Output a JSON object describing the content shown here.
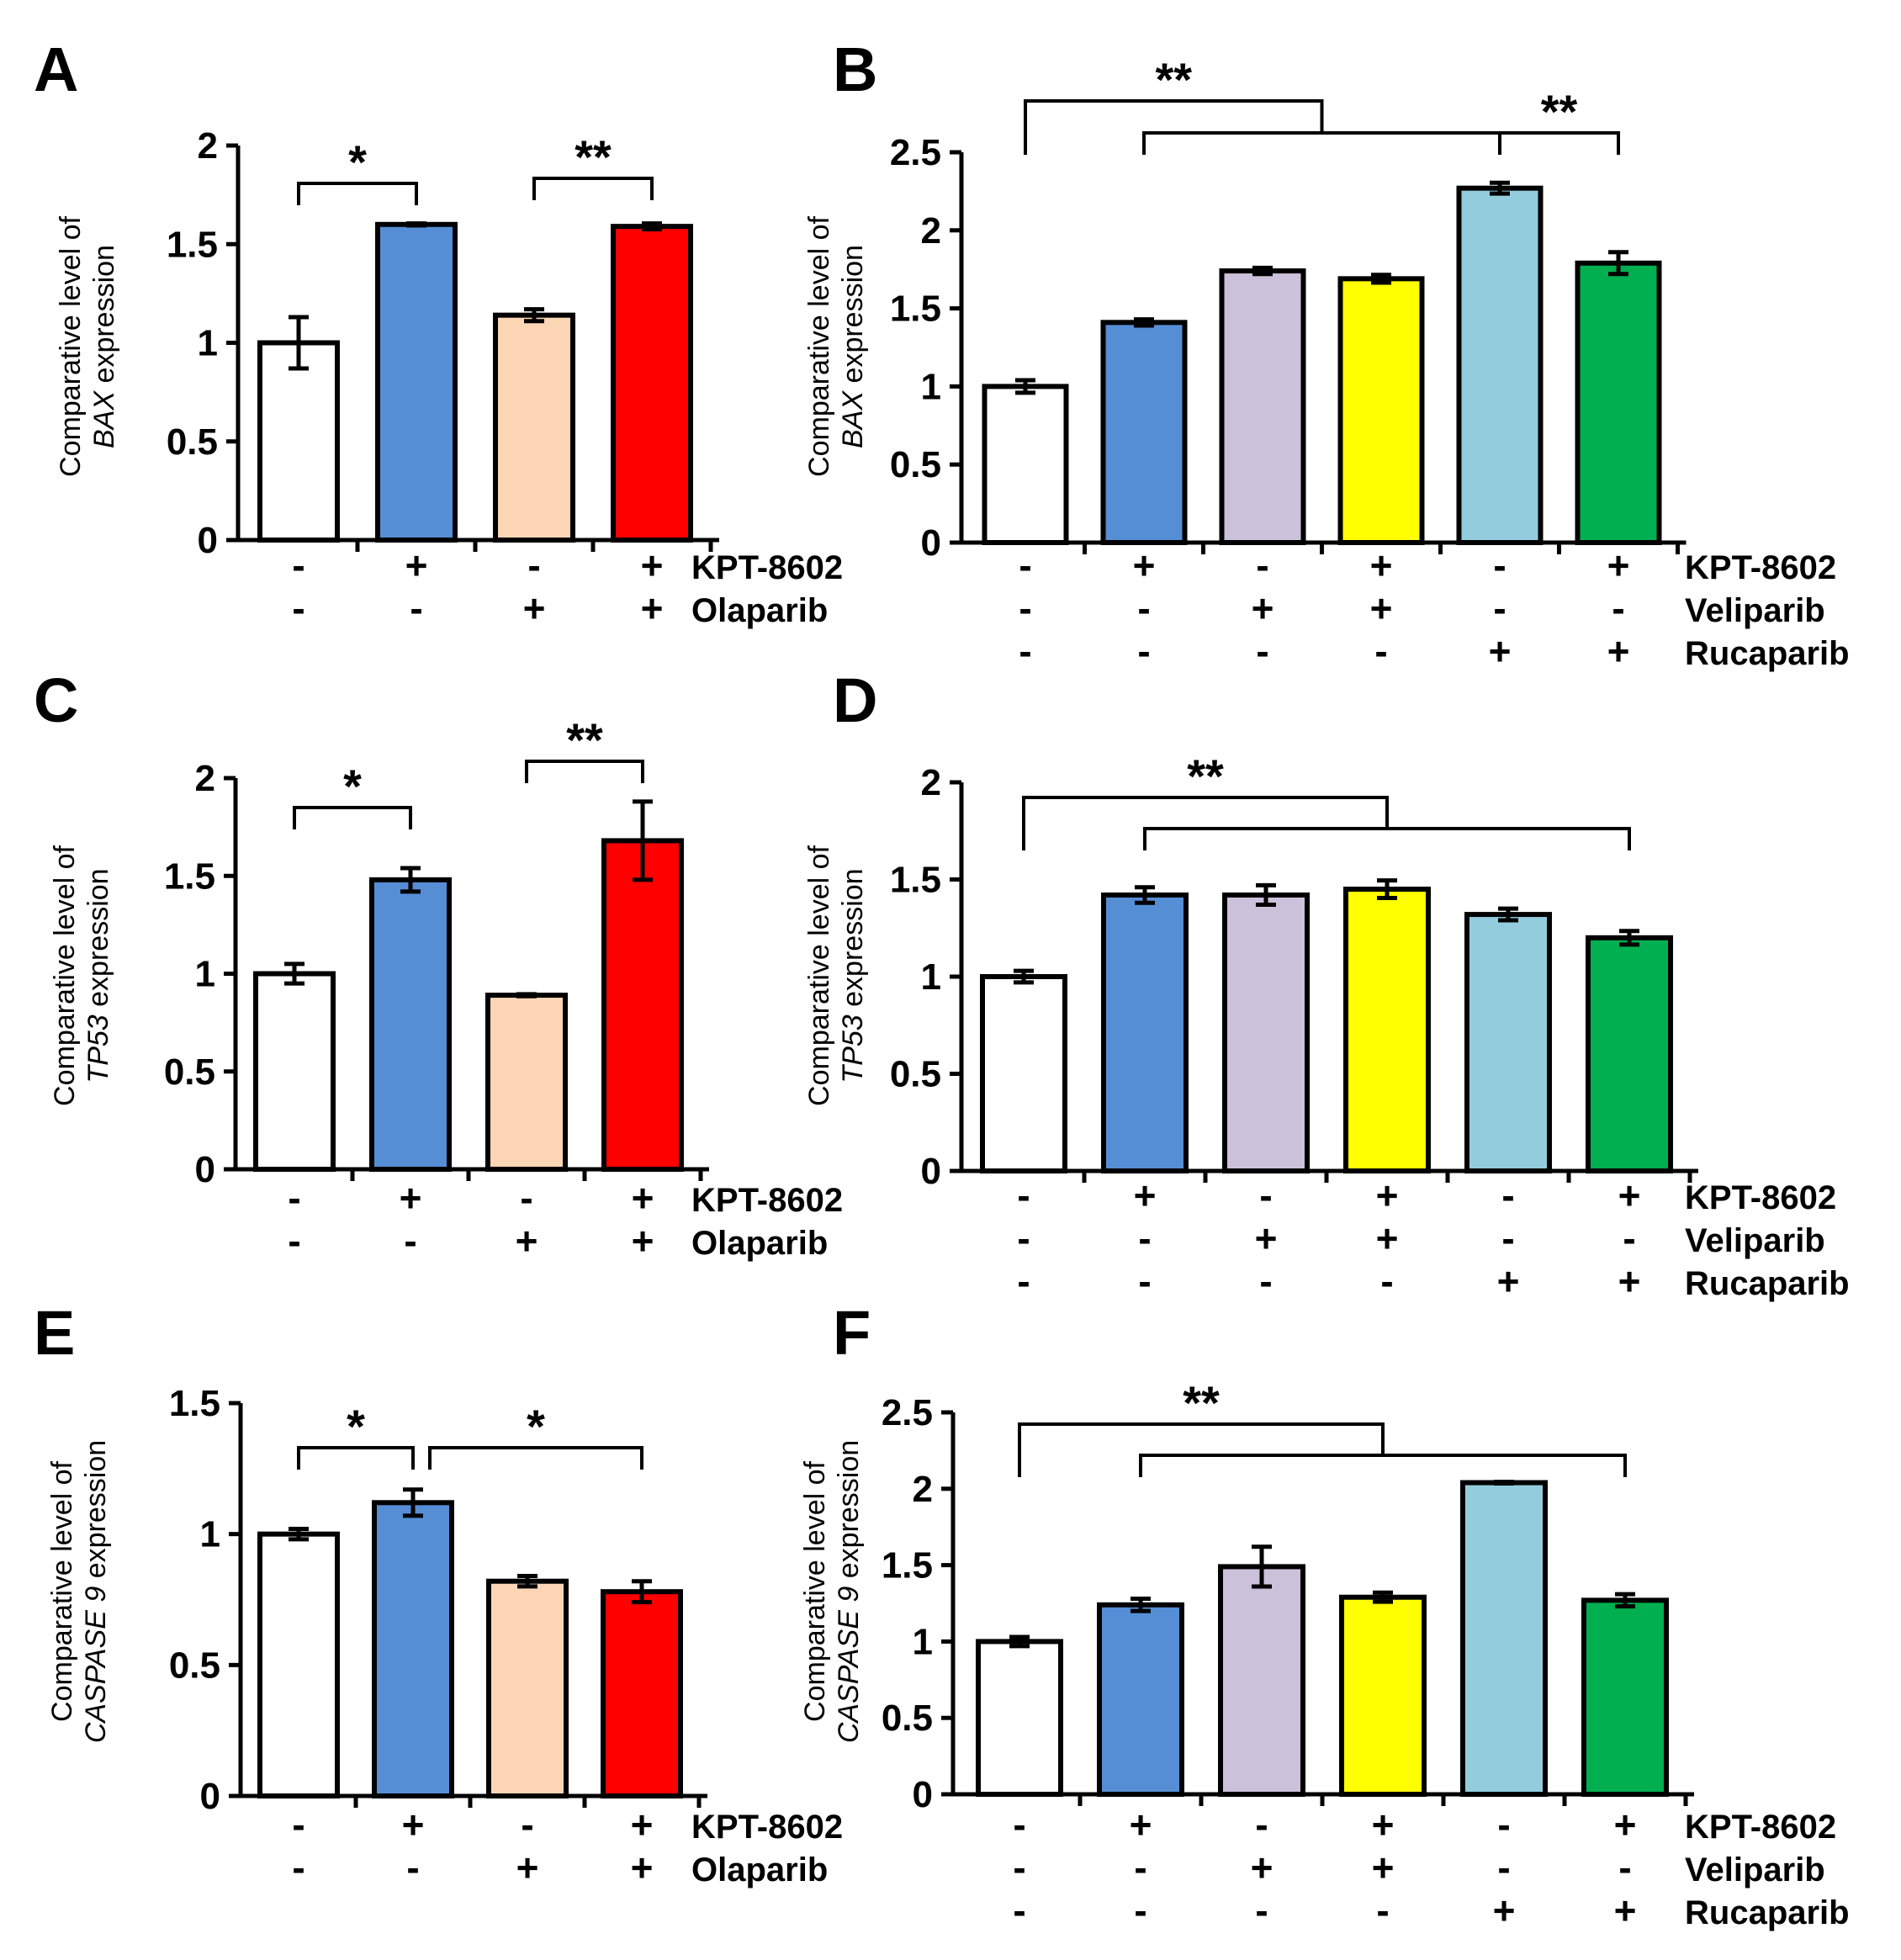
{
  "colors": {
    "white": "#ffffff",
    "blue": "#558ed5",
    "peach": "#fcd5b5",
    "red": "#ff0000",
    "lavender": "#ccc1da",
    "yellow": "#ffff00",
    "light_blue": "#93cddd",
    "green": "#00b050",
    "outline": "#000000"
  },
  "chart_data": [
    {
      "type": "bar",
      "panel": "A",
      "ylabel_prefix": "Comparative level of",
      "ylabel_gene": "BAX",
      "ylabel_suffix": "expression",
      "ylim": [
        0,
        2
      ],
      "yticks": [
        "0",
        "0.5",
        "1",
        "1.5",
        "2"
      ],
      "values": [
        1.0,
        1.6,
        1.14,
        1.59
      ],
      "errors": [
        0.13,
        0.005,
        0.03,
        0.015
      ],
      "colors": [
        "white",
        "blue",
        "peach",
        "red"
      ],
      "conditions": [
        {
          "name": "KPT-8602",
          "signs": [
            "-",
            "+",
            "-",
            "+"
          ]
        },
        {
          "name": "Olaparib",
          "signs": [
            "-",
            "-",
            "+",
            "+"
          ]
        }
      ],
      "significance": [
        {
          "label": "*",
          "from": 0,
          "to": 1
        },
        {
          "label": "**",
          "from": 2,
          "to": 3
        }
      ],
      "grid": false
    },
    {
      "type": "bar",
      "panel": "B",
      "ylabel_prefix": "Comparative level of",
      "ylabel_gene": "BAX",
      "ylabel_suffix": "expression",
      "ylim": [
        0,
        2.5
      ],
      "yticks": [
        "0",
        "0.5",
        "1",
        "1.5",
        "2",
        "2.5"
      ],
      "values": [
        1.0,
        1.41,
        1.74,
        1.69,
        2.27,
        1.79
      ],
      "errors": [
        0.04,
        0.02,
        0.02,
        0.025,
        0.035,
        0.07
      ],
      "colors": [
        "white",
        "blue",
        "lavender",
        "yellow",
        "light_blue",
        "green"
      ],
      "conditions": [
        {
          "name": "KPT-8602",
          "signs": [
            "-",
            "+",
            "-",
            "+",
            "-",
            "+"
          ]
        },
        {
          "name": "Veliparib",
          "signs": [
            "-",
            "-",
            "+",
            "+",
            "-",
            "-"
          ]
        },
        {
          "name": "Rucaparib",
          "signs": [
            "-",
            "-",
            "-",
            "-",
            "+",
            "+"
          ]
        }
      ],
      "significance": [
        {
          "label": "**",
          "type": "nested",
          "left": 0,
          "span": [
            1,
            4
          ]
        },
        {
          "label": "**",
          "from": 4,
          "to": 5
        }
      ],
      "grid": false
    },
    {
      "type": "bar",
      "panel": "C",
      "ylabel_prefix": "Comparative level of",
      "ylabel_gene": "TP53",
      "ylabel_suffix": "expression",
      "ylim": [
        0,
        2
      ],
      "yticks": [
        "0",
        "0.5",
        "1",
        "1.5",
        "2"
      ],
      "values": [
        1.0,
        1.48,
        0.89,
        1.68
      ],
      "errors": [
        0.05,
        0.06,
        0.005,
        0.2
      ],
      "colors": [
        "white",
        "blue",
        "peach",
        "red"
      ],
      "conditions": [
        {
          "name": "KPT-8602",
          "signs": [
            "-",
            "+",
            "-",
            "+"
          ]
        },
        {
          "name": "Olaparib",
          "signs": [
            "-",
            "-",
            "+",
            "+"
          ]
        }
      ],
      "significance": [
        {
          "label": "*",
          "from": 0,
          "to": 1
        },
        {
          "label": "**",
          "from": 2,
          "to": 3
        }
      ],
      "grid": false
    },
    {
      "type": "bar",
      "panel": "D",
      "ylabel_prefix": "Comparative level of",
      "ylabel_gene": "TP53",
      "ylabel_suffix": "expression",
      "ylim": [
        0,
        2
      ],
      "yticks": [
        "0",
        "0.5",
        "1",
        "1.5",
        "2"
      ],
      "values": [
        1.0,
        1.42,
        1.42,
        1.45,
        1.32,
        1.2
      ],
      "errors": [
        0.03,
        0.04,
        0.05,
        0.045,
        0.03,
        0.035
      ],
      "colors": [
        "white",
        "blue",
        "lavender",
        "yellow",
        "light_blue",
        "green"
      ],
      "conditions": [
        {
          "name": "KPT-8602",
          "signs": [
            "-",
            "+",
            "-",
            "+",
            "-",
            "+"
          ]
        },
        {
          "name": "Veliparib",
          "signs": [
            "-",
            "-",
            "+",
            "+",
            "-",
            "-"
          ]
        },
        {
          "name": "Rucaparib",
          "signs": [
            "-",
            "-",
            "-",
            "-",
            "+",
            "+"
          ]
        }
      ],
      "significance": [
        {
          "label": "**",
          "type": "nested",
          "left": 0,
          "span": [
            1,
            5
          ]
        }
      ],
      "grid": false
    },
    {
      "type": "bar",
      "panel": "E",
      "ylabel_prefix": "Comparative level of",
      "ylabel_gene": "CASPASE 9",
      "ylabel_suffix": "expression",
      "ylim": [
        0,
        1.5
      ],
      "yticks": [
        "0",
        "0.5",
        "1",
        "1.5"
      ],
      "values": [
        1.0,
        1.12,
        0.82,
        0.78
      ],
      "errors": [
        0.02,
        0.05,
        0.02,
        0.04
      ],
      "colors": [
        "white",
        "blue",
        "peach",
        "red"
      ],
      "conditions": [
        {
          "name": "KPT-8602",
          "signs": [
            "-",
            "+",
            "-",
            "+"
          ]
        },
        {
          "name": "Olaparib",
          "signs": [
            "-",
            "-",
            "+",
            "+"
          ]
        }
      ],
      "significance": [
        {
          "label": "*",
          "from": 0,
          "to": 1
        },
        {
          "label": "*",
          "from": 1,
          "to": 3
        }
      ],
      "grid": false
    },
    {
      "type": "bar",
      "panel": "F",
      "ylabel_prefix": "Comparative level of",
      "ylabel_gene": "CASPASE 9",
      "ylabel_suffix": "expression",
      "ylim": [
        0,
        2.5
      ],
      "yticks": [
        "0",
        "0.5",
        "1",
        "1.5",
        "2",
        "2.5"
      ],
      "values": [
        1.0,
        1.24,
        1.49,
        1.29,
        2.04,
        1.27
      ],
      "errors": [
        0.03,
        0.04,
        0.13,
        0.03,
        0.005,
        0.04
      ],
      "colors": [
        "white",
        "blue",
        "lavender",
        "yellow",
        "light_blue",
        "green"
      ],
      "conditions": [
        {
          "name": "KPT-8602",
          "signs": [
            "-",
            "+",
            "-",
            "+",
            "-",
            "+"
          ]
        },
        {
          "name": "Veliparib",
          "signs": [
            "-",
            "-",
            "+",
            "+",
            "-",
            "-"
          ]
        },
        {
          "name": "Rucaparib",
          "signs": [
            "-",
            "-",
            "-",
            "-",
            "+",
            "+"
          ]
        }
      ],
      "significance": [
        {
          "label": "**",
          "type": "nested",
          "left": 0,
          "span": [
            1,
            5
          ]
        }
      ],
      "grid": false
    }
  ]
}
